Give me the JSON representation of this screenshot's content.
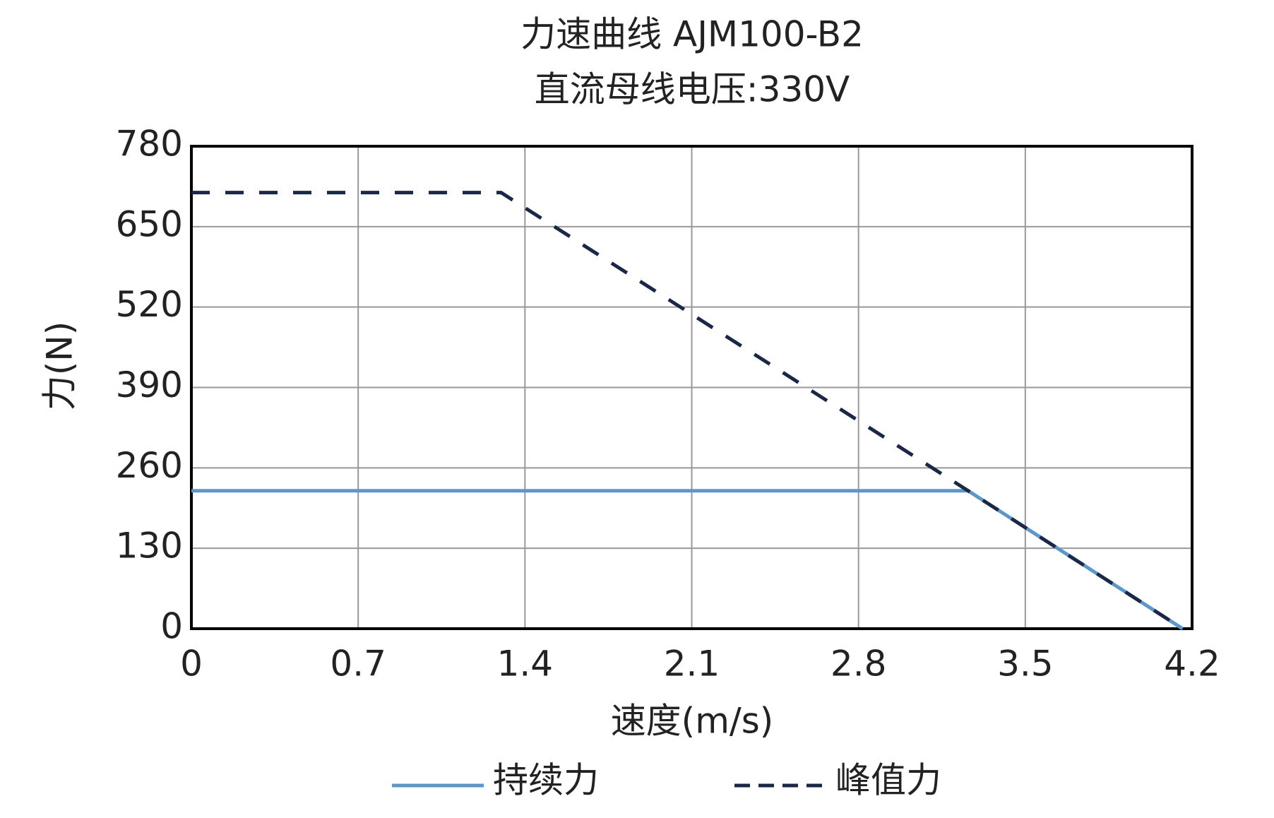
{
  "chart_data": {
    "type": "line",
    "title": "力速曲线 AJM100-B2",
    "subtitle": "直流母线电压:330V",
    "x_label": "速度(m/s)",
    "y_label": "力(N)",
    "xlim": [
      0,
      4.2
    ],
    "xticks": [
      0,
      0.7,
      1.4,
      2.1,
      2.8,
      3.5,
      4.2
    ],
    "ylim": [
      0,
      780
    ],
    "yticks": [
      0,
      130,
      260,
      390,
      520,
      650,
      780
    ],
    "grid": true,
    "legend": "bottom",
    "series": [
      {
        "name": "持续力",
        "color": "#5b97cb",
        "style": "solid",
        "x": [
          0,
          3.26,
          4.16
        ],
        "values": [
          223,
          223,
          0
        ]
      },
      {
        "name": "峰值力",
        "color": "#1b2747",
        "style": "dashed",
        "x": [
          0,
          1.3,
          3.26,
          4.16
        ],
        "values": [
          705,
          705,
          223,
          0
        ]
      }
    ]
  }
}
